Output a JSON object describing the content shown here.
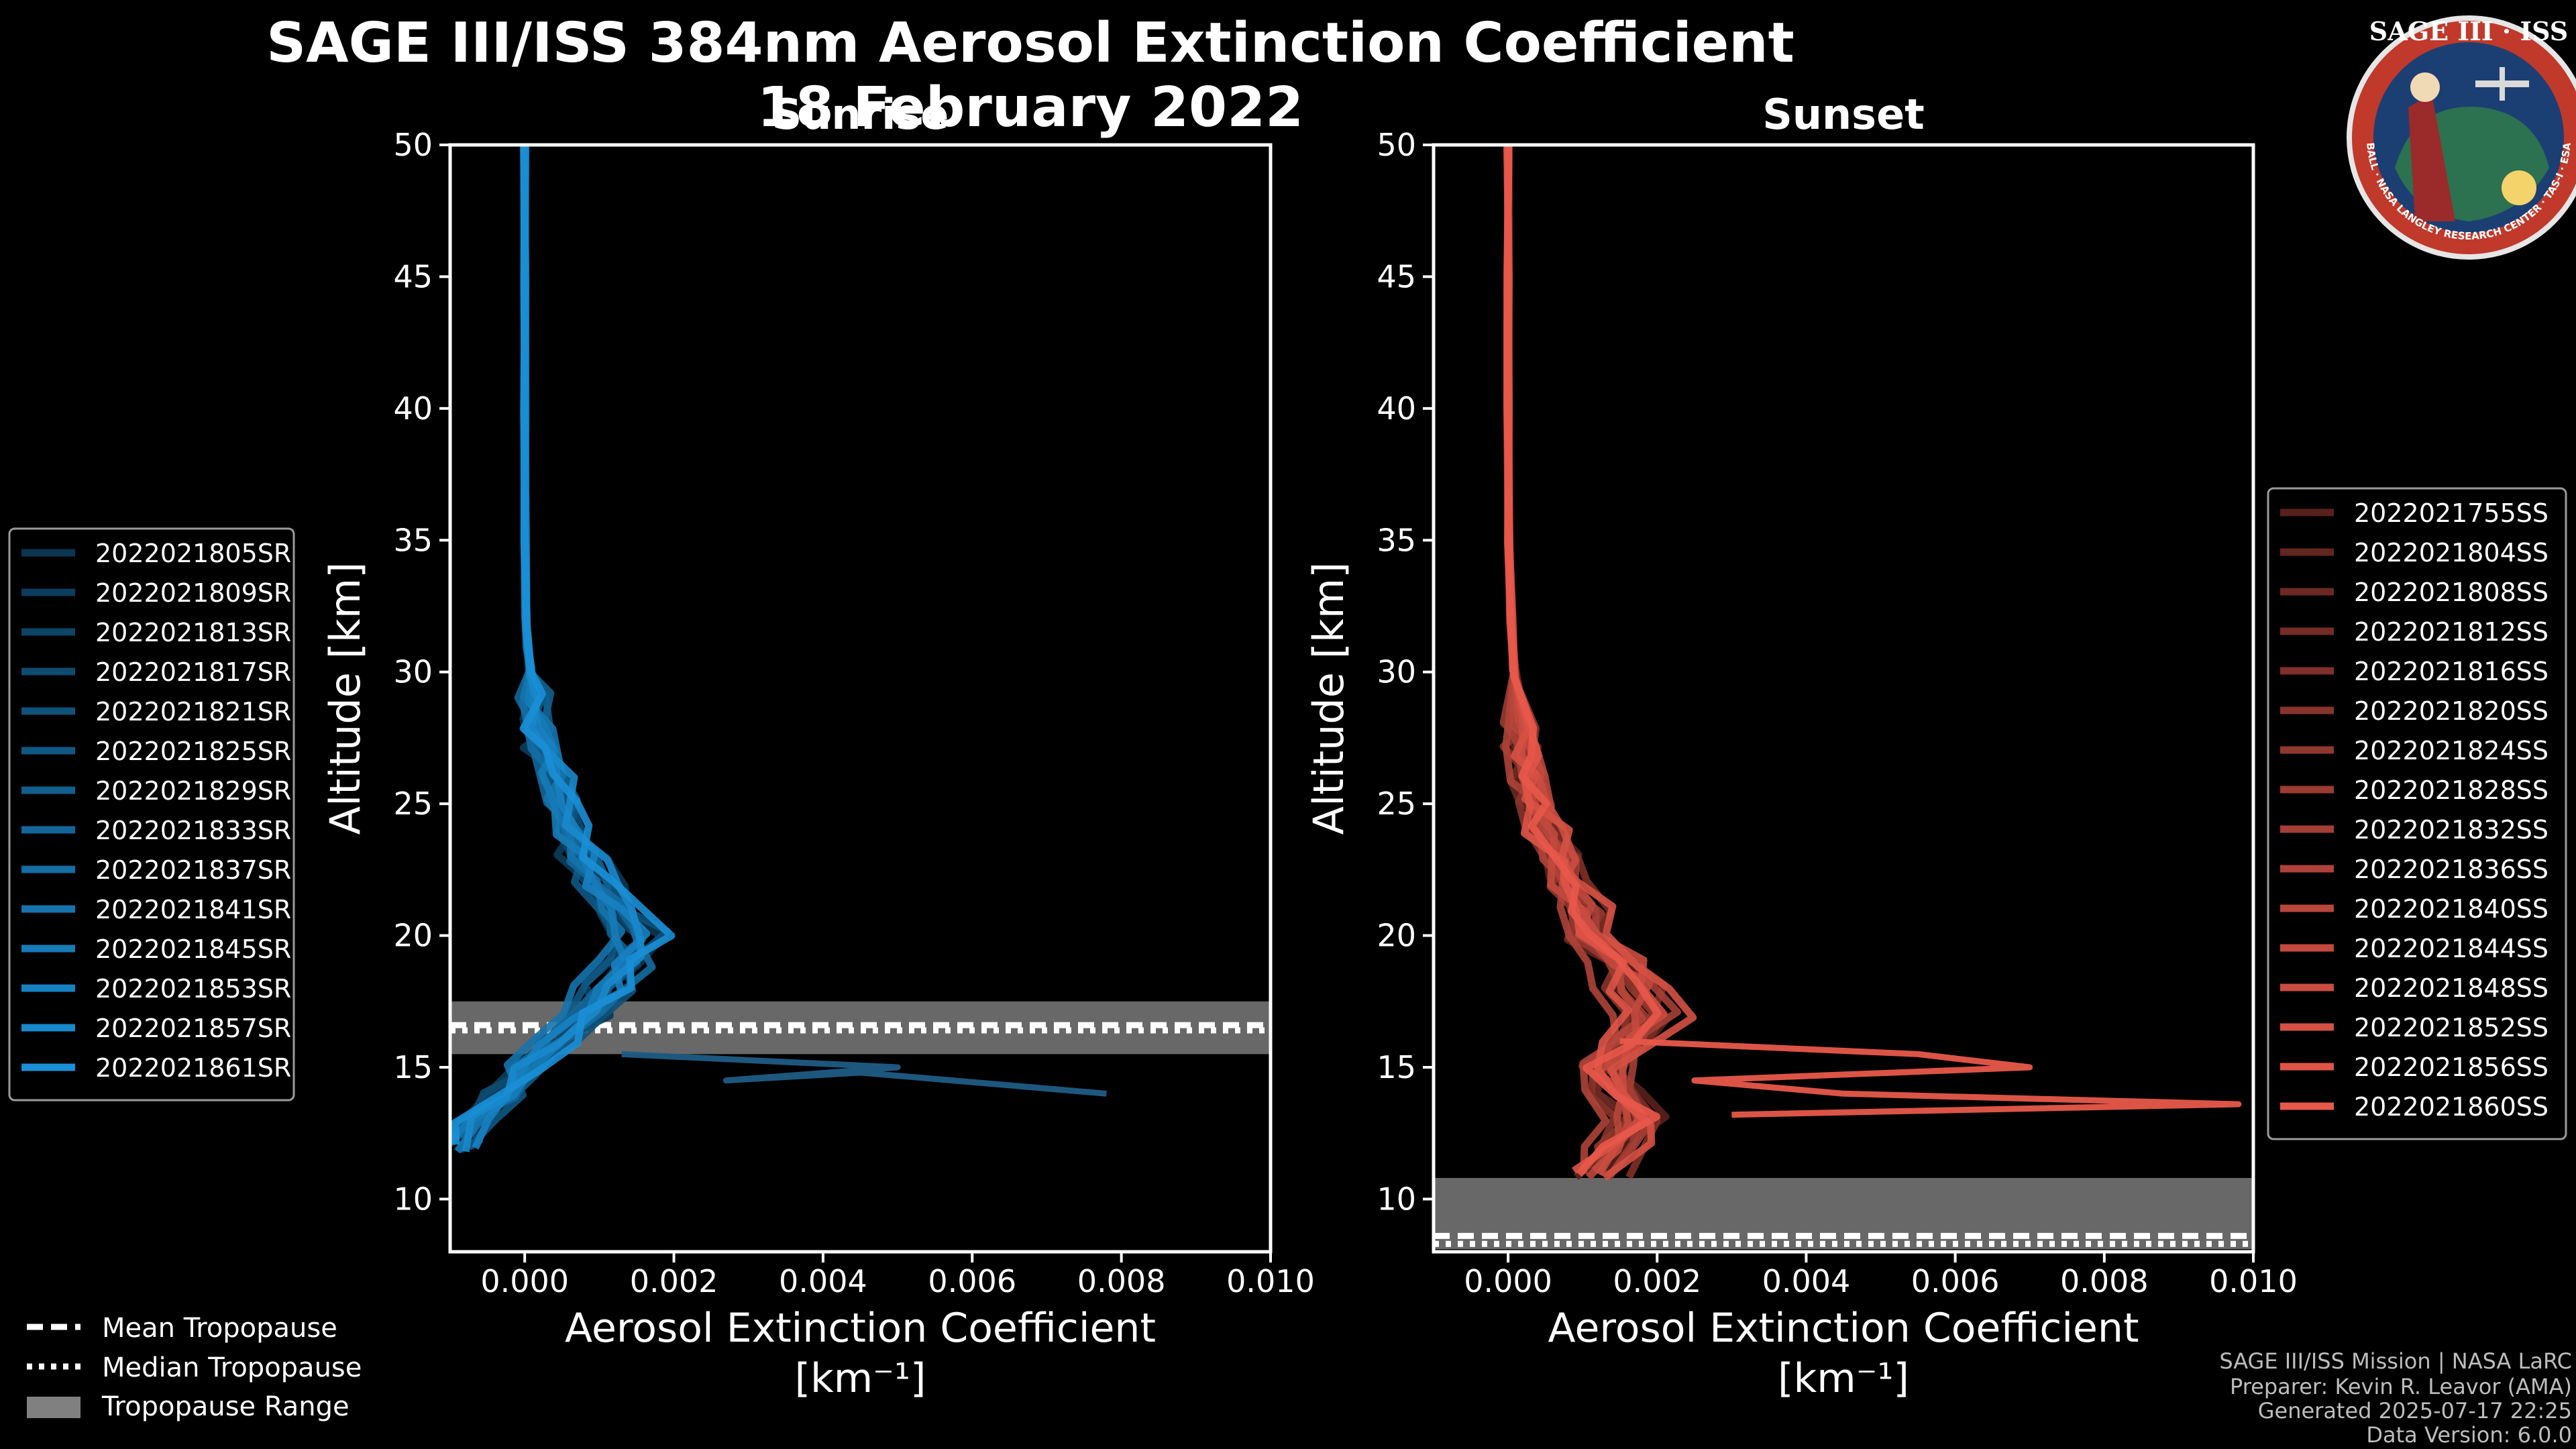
{
  "chart_data": {
    "type": "line",
    "title_line1": "SAGE III/ISS 384nm Aerosol Extinction Coefficient",
    "title_line2": "18 February 2022",
    "logo": {
      "top_text": "SAGE III · ISS",
      "ring_text": "BALL · NASA LANGLEY RESEARCH CENTER · TAS-I · ESA"
    },
    "xlabel_line1": "Aerosol Extinction Coefficient",
    "xlabel_line2": "[km⁻¹]",
    "ylabel": "Altitude [km]",
    "xlim": [
      -0.001,
      0.01
    ],
    "ylim": [
      8,
      50
    ],
    "xticks": [
      0.0,
      0.002,
      0.004,
      0.006,
      0.008,
      0.01
    ],
    "xtick_labels": [
      "0.000",
      "0.002",
      "0.004",
      "0.006",
      "0.008",
      "0.010"
    ],
    "yticks": [
      10,
      15,
      20,
      25,
      30,
      35,
      40,
      45,
      50
    ],
    "ytick_labels": [
      "10",
      "15",
      "20",
      "25",
      "30",
      "35",
      "40",
      "45",
      "50"
    ],
    "panels": [
      {
        "id": "sunrise",
        "title": "Sunrise",
        "base_color": "#1a8fd6",
        "tropopause": {
          "min": 15.5,
          "max": 17.5,
          "mean": 16.6,
          "median": 16.4
        },
        "legend_position": "left",
        "series": [
          {
            "name": "2022021805SR"
          },
          {
            "name": "2022021809SR"
          },
          {
            "name": "2022021813SR"
          },
          {
            "name": "2022021817SR"
          },
          {
            "name": "2022021821SR"
          },
          {
            "name": "2022021825SR"
          },
          {
            "name": "2022021829SR"
          },
          {
            "name": "2022021833SR"
          },
          {
            "name": "2022021837SR"
          },
          {
            "name": "2022021841SR"
          },
          {
            "name": "2022021845SR"
          },
          {
            "name": "2022021853SR"
          },
          {
            "name": "2022021857SR"
          },
          {
            "name": "2022021861SR"
          }
        ],
        "profile": {
          "altitudes": [
            12,
            13,
            14,
            15,
            16,
            17,
            18,
            19,
            20,
            21,
            22,
            23,
            24,
            25,
            26,
            27,
            28,
            29,
            30,
            31,
            32,
            35,
            40,
            45,
            50
          ],
          "values": [
            -0.0009,
            -0.0006,
            -0.0003,
            0.0,
            0.0004,
            0.0008,
            0.0011,
            0.0014,
            0.0015,
            0.0013,
            0.001,
            0.0008,
            0.00065,
            0.0005,
            0.0004,
            0.00025,
            0.00018,
            0.00012,
            8e-05,
            4e-05,
            2e-05,
            5e-06,
            0.0,
            0.0,
            0.0
          ]
        },
        "spike": {
          "altitudes": [
            15.5,
            15.0,
            14.5,
            14.8,
            14.0
          ],
          "values": [
            0.0013,
            0.005,
            0.0027,
            0.0045,
            0.0078
          ]
        }
      },
      {
        "id": "sunset",
        "title": "Sunset",
        "base_color": "#e8584a",
        "tropopause": {
          "min": 8.1,
          "max": 10.8,
          "mean": 8.6,
          "median": 8.3
        },
        "legend_position": "right",
        "series": [
          {
            "name": "2022021755SS"
          },
          {
            "name": "2022021804SS"
          },
          {
            "name": "2022021808SS"
          },
          {
            "name": "2022021812SS"
          },
          {
            "name": "2022021816SS"
          },
          {
            "name": "2022021820SS"
          },
          {
            "name": "2022021824SS"
          },
          {
            "name": "2022021828SS"
          },
          {
            "name": "2022021832SS"
          },
          {
            "name": "2022021836SS"
          },
          {
            "name": "2022021840SS"
          },
          {
            "name": "2022021844SS"
          },
          {
            "name": "2022021848SS"
          },
          {
            "name": "2022021852SS"
          },
          {
            "name": "2022021856SS"
          },
          {
            "name": "2022021860SS"
          }
        ],
        "profile": {
          "altitudes": [
            11,
            12,
            13,
            14,
            15,
            16,
            17,
            18,
            19,
            20,
            21,
            22,
            23,
            24,
            25,
            26,
            27,
            28,
            30,
            32,
            35,
            40,
            45,
            50
          ],
          "values": [
            0.0012,
            0.0015,
            0.0018,
            0.0015,
            0.0013,
            0.0016,
            0.0019,
            0.0017,
            0.0015,
            0.0012,
            0.001,
            0.0008,
            0.00065,
            0.0005,
            0.00038,
            0.00028,
            0.0002,
            0.00014,
            8e-05,
            4e-05,
            1e-05,
            0.0,
            0.0,
            0.0
          ]
        },
        "spike": {
          "altitudes": [
            16.0,
            15.5,
            15.0,
            14.5,
            14.0,
            13.6,
            13.2
          ],
          "values": [
            0.0015,
            0.0055,
            0.007,
            0.0025,
            0.0045,
            0.0098,
            0.003
          ]
        }
      }
    ],
    "tropopause_legend": [
      "Mean Tropopause",
      "Median Tropopause",
      "Tropopause Range"
    ],
    "footer": [
      "SAGE III/ISS Mission | NASA LaRC",
      "Preparer: Kevin R. Leavor (AMA)",
      "Generated 2025-07-17 22:25",
      "Data Version: 6.0.0"
    ]
  }
}
